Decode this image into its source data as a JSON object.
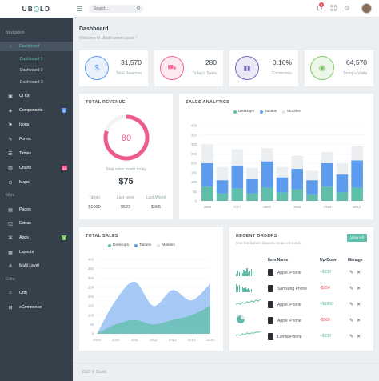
{
  "brand": {
    "prefix": "UB",
    "suffix": "LD"
  },
  "search": {
    "placeholder": "Search..."
  },
  "topbar": {
    "notif_count": "3"
  },
  "sidebar": {
    "nav_title": "Navigation",
    "extra_title": "More",
    "extra2_title": "Extra",
    "items": [
      {
        "label": "Dashboard"
      },
      {
        "label": "UI Kit"
      },
      {
        "label": "Components",
        "badge": "6"
      },
      {
        "label": "Icons"
      },
      {
        "label": "Forms"
      },
      {
        "label": "Tables"
      },
      {
        "label": "Charts",
        "badge": "10"
      },
      {
        "label": "Maps"
      },
      {
        "label": "Pages"
      },
      {
        "label": "Extras"
      },
      {
        "label": "Apps",
        "badge": "3"
      },
      {
        "label": "Layouts"
      },
      {
        "label": "Multi Level"
      },
      {
        "label": "Crm"
      },
      {
        "label": "eCommerce"
      }
    ],
    "sub": [
      "Dashboard 1",
      "Dashboard 2",
      "Dashboard 3"
    ]
  },
  "header": {
    "title": "Dashboard",
    "subtitle": "Welcome to Ubold admin panel !"
  },
  "stats": [
    {
      "value": "31,570",
      "label": "Total Revenue",
      "icon": "dollar-icon",
      "color": "#5d9cec"
    },
    {
      "value": "280",
      "label": "Today's Sales",
      "icon": "cart-icon",
      "color": "#f76397"
    },
    {
      "value": "0.16%",
      "label": "Conversion",
      "icon": "bar-chart-icon",
      "color": "#7266ba"
    },
    {
      "value": "64,570",
      "label": "Today's Visits",
      "icon": "eye-icon",
      "color": "#81c868"
    }
  ],
  "revenue": {
    "title": "TOTAL REVENUE",
    "gauge_value": "80",
    "gauge_fraction": 0.8,
    "caption": "Total sales made today",
    "amount": "$75",
    "cols": [
      {
        "label": "Target",
        "value": "$1000"
      },
      {
        "label": "Last week",
        "value": "$523"
      },
      {
        "label": "Last Month",
        "value": "$965"
      }
    ]
  },
  "sales_analytics": {
    "title": "SALES ANALYTICS"
  },
  "total_sales": {
    "title": "TOTAL SALES"
  },
  "orders": {
    "title": "RECENT ORDERS",
    "subtitle": "Use the button classes on an element.",
    "button": "View All",
    "headers": [
      "Item Name",
      "Up-Down",
      "Manage"
    ],
    "rows": [
      {
        "name": "Apple iPhone",
        "change": "+$230",
        "trend": "up"
      },
      {
        "name": "Samsung Phone",
        "change": "-$154",
        "trend": "down"
      },
      {
        "name": "Apple iPhone",
        "change": "+$1850",
        "trend": "up"
      },
      {
        "name": "Apple iPhone",
        "change": "-$560",
        "trend": "down"
      },
      {
        "name": "Lumia iPhone",
        "change": "+$230",
        "trend": "up"
      }
    ]
  },
  "footer": {
    "text": "2015 © Ubold."
  },
  "chart_data": [
    {
      "type": "bar",
      "title": "SALES ANALYTICS",
      "categories": [
        "2005",
        "2006",
        "2007",
        "2008",
        "2009",
        "2010",
        "2011",
        "2012",
        "2013",
        "2014",
        "2015"
      ],
      "x_tick_labels": [
        "2005",
        "2007",
        "2009",
        "2011",
        "2013",
        "2015"
      ],
      "ylim": [
        0,
        400
      ],
      "yticks": [
        0,
        50,
        100,
        150,
        200,
        250,
        300,
        350,
        400
      ],
      "stacked": true,
      "series": [
        {
          "name": "Desktops",
          "color": "#5fbeaa",
          "values": [
            75,
            40,
            65,
            40,
            70,
            45,
            60,
            35,
            75,
            45,
            70
          ]
        },
        {
          "name": "Tablets",
          "color": "#5d9cec",
          "values": [
            125,
            70,
            120,
            75,
            140,
            80,
            110,
            75,
            125,
            95,
            145
          ]
        },
        {
          "name": "Mobiles",
          "color": "#ebeff2",
          "values": [
            100,
            70,
            90,
            60,
            70,
            55,
            70,
            50,
            60,
            60,
            75
          ]
        }
      ],
      "legend": "top"
    },
    {
      "type": "area",
      "title": "TOTAL SALES",
      "x": [
        "2009",
        "2010",
        "2011",
        "2012",
        "2013",
        "2014",
        "2015"
      ],
      "ylim": [
        0,
        400
      ],
      "yticks": [
        0,
        50,
        100,
        150,
        200,
        250,
        300,
        350,
        400
      ],
      "series": [
        {
          "name": "Desktops",
          "color": "#5fbeaa",
          "values": [
            0,
            50,
            75,
            50,
            75,
            100,
            150
          ]
        },
        {
          "name": "Tablets",
          "color": "#5d9cec",
          "values": [
            0,
            180,
            280,
            150,
            235,
            180,
            270
          ]
        },
        {
          "name": "Mobiles",
          "color": "#ebeff2",
          "values": [
            0,
            0,
            0,
            0,
            0,
            0,
            0
          ]
        }
      ],
      "legend": "top"
    }
  ]
}
